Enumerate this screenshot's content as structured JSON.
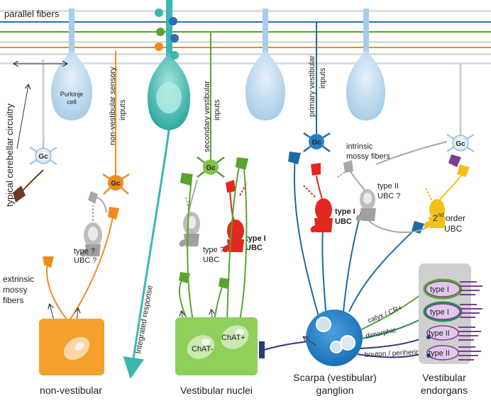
{
  "labels": {
    "parallel_fibers": "parallel fibers",
    "purkinje_1": "Purkinje",
    "purkinje_2": "cell",
    "typical": "typical cerebellar circuitry",
    "nonvest_inputs_1": "non-vestibular sensory",
    "nonvest_inputs_2": "inputs",
    "secondary_1": "secondary vestibular",
    "secondary_2": "inputs",
    "primary_1": "primary vestibular",
    "primary_2": "inputs",
    "intrinsic_1": "intrinsic",
    "intrinsic_2": "mossy fibers",
    "integrated": "Integrated response",
    "extrinsic_1": "extrinsic",
    "extrinsic_2": "mossy",
    "extrinsic_3": "fibers",
    "type_q_a_1": "type ?",
    "type_q_a_2": "UBC ?",
    "type_q_b_1": "type ?",
    "type_q_b_2": "UBC",
    "type1_a_1": "type I",
    "type1_a_2": "UBC",
    "type1_b_1": "type I",
    "type1_b_2": "UBC",
    "type2_1": "type II",
    "type2_2": "UBC ?",
    "second_order_1": "nd",
    "second_order_pre": "2",
    "second_order_2": "order",
    "second_order_3": "UBC",
    "chat_minus": "ChAT-",
    "chat_plus": "ChAT+",
    "calyx": "calyx / CR+",
    "dimorphic": "dimorphic",
    "bouton": "bouton / periherin+",
    "type_i_1": "type I",
    "type_i_2": "type I",
    "type_ii_1": "type II",
    "type_ii_2": "type II",
    "gc": "Gc",
    "bottom_nonvest": "non-vestibular",
    "bottom_vn": "Vestibular nuclei",
    "bottom_scarpa_1": "Scarpa (vestibular)",
    "bottom_scarpa_2": "ganglion",
    "bottom_endorgans_1": "Vestibular",
    "bottom_endorgans_2": "endorgans"
  },
  "colors": {
    "orange": "#f08a1f",
    "green": "#5aa32f",
    "blue": "#1f6aa5",
    "red": "#e0281f",
    "gray": "#a8a8a8",
    "yellow": "#f3c21a",
    "teal": "#3ab8b0",
    "purkinje": "#bcd9ee",
    "purple": "#7a3e8f"
  }
}
